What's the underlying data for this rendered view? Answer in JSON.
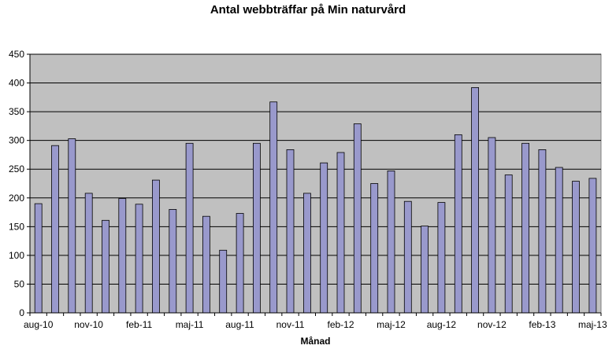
{
  "chart_data": {
    "type": "bar",
    "title": "Antal webbträffar på Min naturvård",
    "xlabel": "Månad",
    "ylabel": "",
    "ylim": [
      0,
      450
    ],
    "y_ticks": [
      0,
      50,
      100,
      150,
      200,
      250,
      300,
      350,
      400,
      450
    ],
    "grid": true,
    "legend": "none",
    "colors": {
      "bar_fill": "#9999cc",
      "bar_stroke": "#000000",
      "plot_background": "#c0c0c0",
      "gridline": "#000000"
    },
    "categories": [
      "aug-10",
      "sep-10",
      "okt-10",
      "nov-10",
      "dec-10",
      "jan-11",
      "feb-11",
      "mar-11",
      "apr-11",
      "maj-11",
      "jun-11",
      "jul-11",
      "aug-11",
      "sep-11",
      "okt-11",
      "nov-11",
      "dec-11",
      "jan-12",
      "feb-12",
      "mar-12",
      "apr-12",
      "maj-12",
      "jun-12",
      "jul-12",
      "aug-12",
      "sep-12",
      "okt-12",
      "nov-12",
      "dec-12",
      "jan-13",
      "feb-13",
      "mar-13",
      "apr-13",
      "maj-13"
    ],
    "x_tick_labels": [
      "aug-10",
      "nov-10",
      "feb-11",
      "maj-11",
      "aug-11",
      "nov-11",
      "feb-12",
      "maj-12",
      "aug-12",
      "nov-12",
      "feb-13",
      "maj-13"
    ],
    "values": [
      190,
      291,
      303,
      208,
      161,
      199,
      189,
      231,
      180,
      295,
      168,
      109,
      173,
      295,
      367,
      284,
      208,
      261,
      279,
      329,
      225,
      247,
      194,
      151,
      192,
      310,
      392,
      305,
      240,
      295,
      284,
      253,
      229,
      234
    ]
  }
}
